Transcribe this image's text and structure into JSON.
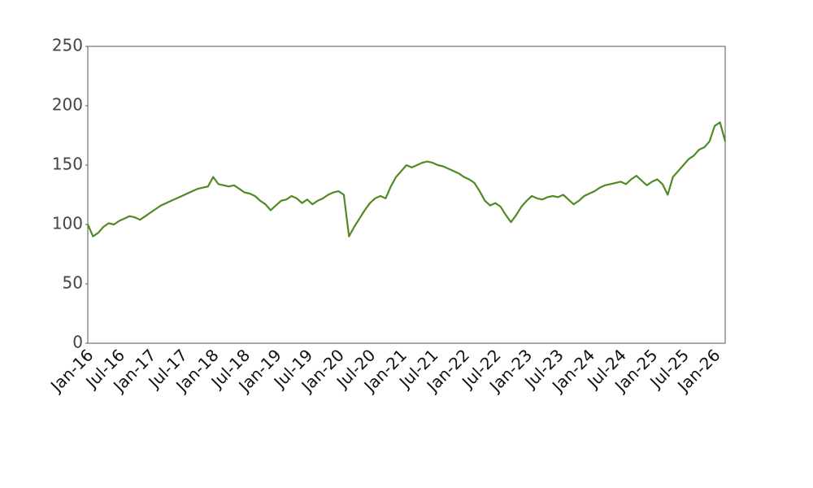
{
  "chart_data": {
    "type": "line",
    "x": [
      "Jan-16",
      "Feb-16",
      "Mar-16",
      "Apr-16",
      "May-16",
      "Jun-16",
      "Jul-16",
      "Aug-16",
      "Sep-16",
      "Oct-16",
      "Nov-16",
      "Dec-16",
      "Jan-17",
      "Feb-17",
      "Mar-17",
      "Apr-17",
      "May-17",
      "Jun-17",
      "Jul-17",
      "Aug-17",
      "Sep-17",
      "Oct-17",
      "Nov-17",
      "Dec-17",
      "Jan-18",
      "Feb-18",
      "Mar-18",
      "Apr-18",
      "May-18",
      "Jun-18",
      "Jul-18",
      "Aug-18",
      "Sep-18",
      "Oct-18",
      "Nov-18",
      "Dec-18",
      "Jan-19",
      "Feb-19",
      "Mar-19",
      "Apr-19",
      "May-19",
      "Jun-19",
      "Jul-19",
      "Aug-19",
      "Sep-19",
      "Oct-19",
      "Nov-19",
      "Dec-19",
      "Jan-20",
      "Feb-20",
      "Mar-20",
      "Apr-20",
      "May-20",
      "Jun-20",
      "Jul-20",
      "Aug-20",
      "Sep-20",
      "Oct-20",
      "Nov-20",
      "Dec-20",
      "Jan-21",
      "Feb-21",
      "Mar-21",
      "Apr-21",
      "May-21",
      "Jun-21",
      "Jul-21",
      "Aug-21",
      "Sep-21",
      "Oct-21",
      "Nov-21",
      "Dec-21",
      "Jan-22",
      "Feb-22",
      "Mar-22",
      "Apr-22",
      "May-22",
      "Jun-22",
      "Jul-22",
      "Aug-22",
      "Sep-22",
      "Oct-22",
      "Nov-22",
      "Dec-22",
      "Jan-23",
      "Feb-23",
      "Mar-23",
      "Apr-23",
      "May-23",
      "Jun-23",
      "Jul-23",
      "Aug-23",
      "Sep-23",
      "Oct-23",
      "Nov-23",
      "Dec-23",
      "Jan-24",
      "Feb-24",
      "Mar-24",
      "Apr-24",
      "May-24",
      "Jun-24",
      "Jul-24",
      "Aug-24",
      "Sep-24",
      "Oct-24",
      "Nov-24",
      "Dec-24",
      "Jan-25",
      "Feb-25",
      "Mar-25",
      "Apr-25",
      "May-25",
      "Jun-25",
      "Jul-25",
      "Aug-25",
      "Sep-25",
      "Oct-25",
      "Nov-25",
      "Dec-25",
      "Jan-26",
      "Feb-26",
      "Mar-26"
    ],
    "series": [
      {
        "color": "#4f8a22",
        "values": [
          100,
          90,
          93,
          98,
          101,
          100,
          103,
          105,
          107,
          106,
          104,
          107,
          110,
          113,
          116,
          118,
          120,
          122,
          124,
          126,
          128,
          130,
          131,
          132,
          140,
          134,
          133,
          132,
          133,
          130,
          127,
          126,
          124,
          120,
          117,
          112,
          116,
          120,
          121,
          124,
          122,
          118,
          121,
          117,
          120,
          122,
          125,
          127,
          128,
          125,
          90,
          98,
          105,
          112,
          118,
          122,
          124,
          122,
          132,
          140,
          145,
          150,
          148,
          150,
          152,
          153,
          152,
          150,
          149,
          147,
          145,
          143,
          140,
          138,
          135,
          128,
          120,
          116,
          118,
          115,
          108,
          102,
          108,
          115,
          120,
          124,
          122,
          121,
          123,
          124,
          123,
          125,
          121,
          117,
          120,
          124,
          126,
          128,
          131,
          133,
          134,
          135,
          136,
          134,
          138,
          141,
          137,
          133,
          136,
          138,
          134,
          125,
          140,
          145,
          150,
          155,
          158,
          163,
          165,
          170,
          183,
          186,
          170
        ]
      }
    ],
    "xticks": [
      "Jan-16",
      "Jul-16",
      "Jan-17",
      "Jul-17",
      "Jan-18",
      "Jul-18",
      "Jan-19",
      "Jul-19",
      "Jan-20",
      "Jul-20",
      "Jan-21",
      "Jul-21",
      "Jan-22",
      "Jul-22",
      "Jan-23",
      "Jul-23",
      "Jan-24",
      "Jul-24",
      "Jan-25",
      "Jul-25",
      "Jan-26"
    ],
    "ylim": [
      0,
      250
    ],
    "yticks": [
      0,
      50,
      100,
      150,
      200,
      250
    ],
    "grid": false
  }
}
